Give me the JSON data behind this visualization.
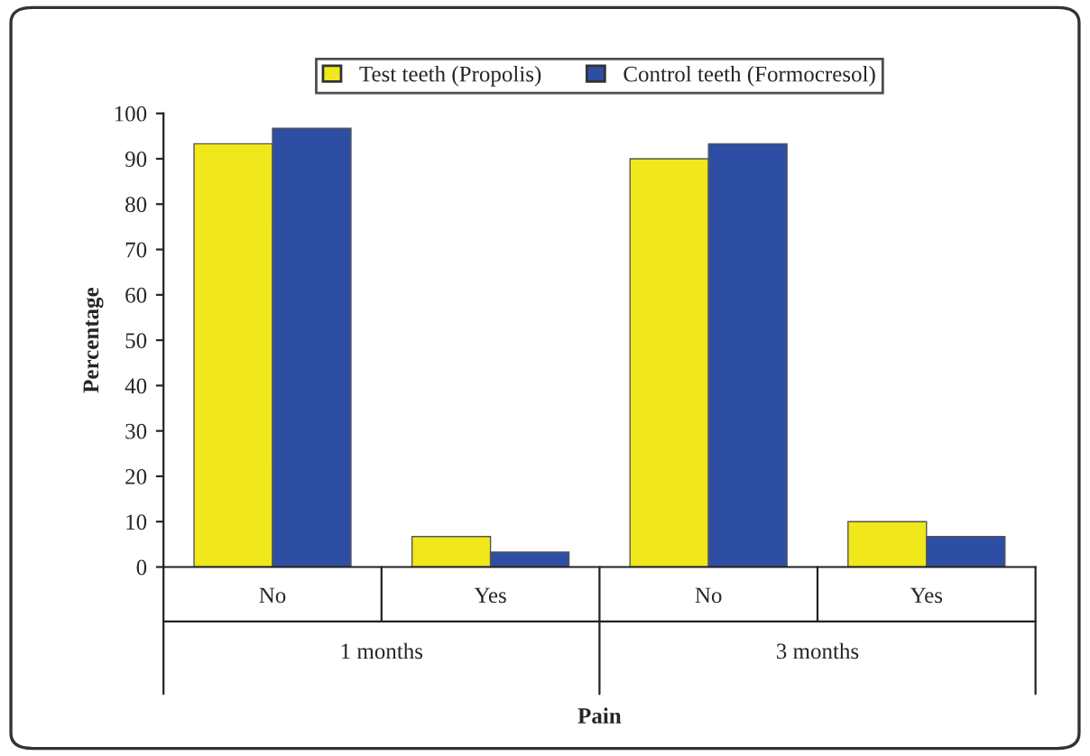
{
  "chart_data": {
    "type": "bar",
    "xlabel": "Pain",
    "ylabel": "Percentage",
    "categories": [
      "No",
      "Yes",
      "No",
      "Yes"
    ],
    "series": [
      {
        "name": "Test teeth (Propolis)",
        "color": "#f0e81a",
        "values": [
          93.3,
          6.7,
          90,
          10
        ]
      },
      {
        "name": "Control teeth (Formocresol)",
        "color": "#2e4ea3",
        "values": [
          96.7,
          3.3,
          93.3,
          6.7
        ]
      }
    ],
    "annotations": [
      "1 months",
      "3 months"
    ],
    "ylim": [
      0,
      100
    ],
    "yticks": [
      0,
      10,
      20,
      30,
      40,
      50,
      60,
      70,
      80,
      90,
      100
    ],
    "legend": "top",
    "grid": false
  }
}
